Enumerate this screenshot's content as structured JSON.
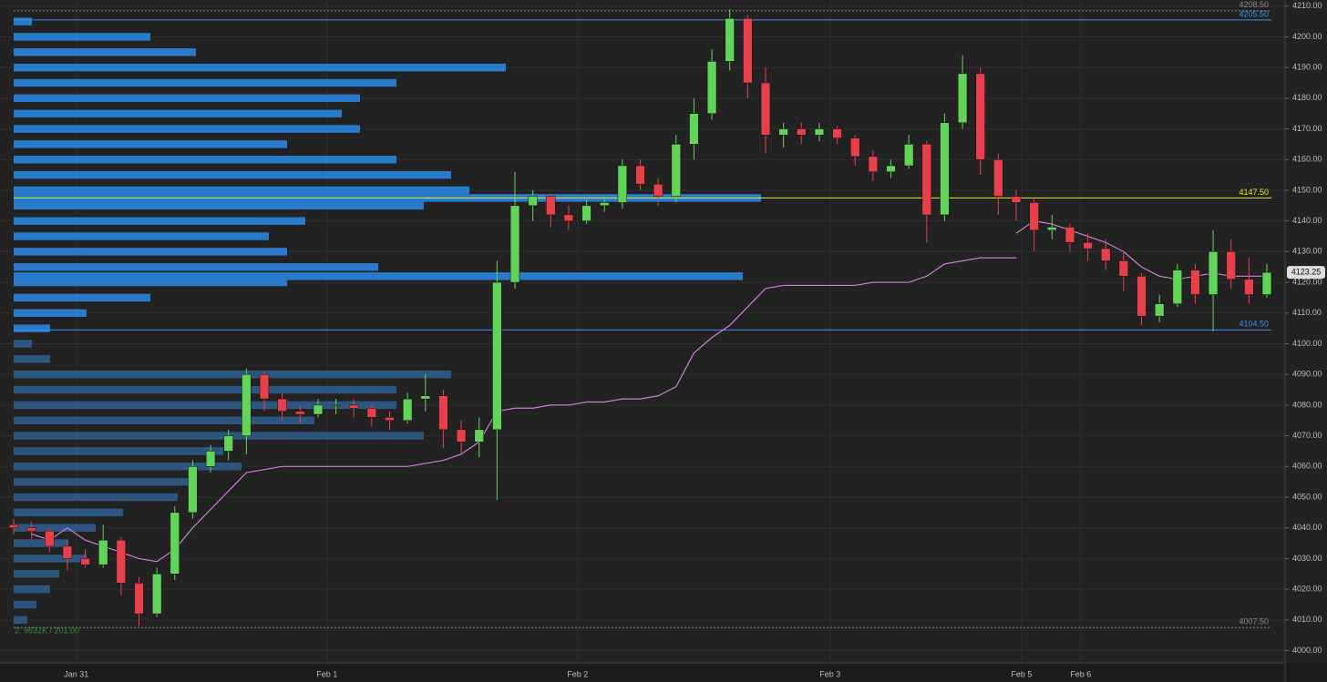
{
  "chart_data": {
    "type": "candlestick",
    "xlim": [
      0,
      70
    ],
    "xticks": [
      {
        "value": 3.5,
        "label": "Jan 31"
      },
      {
        "value": 17.5,
        "label": "Feb 1"
      },
      {
        "value": 31.5,
        "label": "Feb 2"
      },
      {
        "value": 45.6,
        "label": "Feb 3"
      },
      {
        "value": 56.3,
        "label": "Feb 5"
      },
      {
        "value": 59.6,
        "label": "Feb 6"
      }
    ],
    "ylim": [
      3996,
      4212
    ],
    "yticks": [
      {
        "value": 4000,
        "label": "4000.00"
      },
      {
        "value": 4010,
        "label": "4010.00"
      },
      {
        "value": 4020,
        "label": "4020.00"
      },
      {
        "value": 4030,
        "label": "4030.00"
      },
      {
        "value": 4040,
        "label": "4040.00"
      },
      {
        "value": 4050,
        "label": "4050.00"
      },
      {
        "value": 4060,
        "label": "4060.00"
      },
      {
        "value": 4070,
        "label": "4070.00"
      },
      {
        "value": 4080,
        "label": "4080.00"
      },
      {
        "value": 4090,
        "label": "4090.00"
      },
      {
        "value": 4100,
        "label": "4100.00"
      },
      {
        "value": 4110,
        "label": "4110.00"
      },
      {
        "value": 4120,
        "label": "4120.00"
      },
      {
        "value": 4130,
        "label": "4130.00"
      },
      {
        "value": 4140,
        "label": "4140.00"
      },
      {
        "value": 4150,
        "label": "4150.00"
      },
      {
        "value": 4160,
        "label": "4160.00"
      },
      {
        "value": 4170,
        "label": "4170.00"
      },
      {
        "value": 4180,
        "label": "4180.00"
      },
      {
        "value": 4190,
        "label": "4190.00"
      },
      {
        "value": 4200,
        "label": "4200.00"
      },
      {
        "value": 4210,
        "label": "4210.00"
      }
    ],
    "grid": true,
    "up_color": "#62d45a",
    "down_color": "#e8404a",
    "open": [
      4041,
      4040,
      4039,
      4034,
      4030,
      4028,
      4036,
      4022,
      4012,
      4025,
      4045,
      4060,
      4065,
      4070,
      4090,
      4082,
      4078,
      4077,
      4080,
      4080,
      4079,
      4076,
      4075,
      4082,
      4083,
      4072,
      4068,
      4072,
      4120,
      4145,
      4148,
      4142,
      4140,
      4145,
      4146,
      4158,
      4152,
      4148,
      4165,
      4175,
      4192,
      4206,
      4185,
      4168,
      4170,
      4168,
      4170,
      4167,
      4161,
      4156,
      4158,
      4165,
      4142,
      4172,
      4188,
      4160,
      4148,
      4146,
      4137,
      4138,
      4133,
      4131,
      4127,
      4122,
      4109,
      4113,
      4124,
      4116,
      4130,
      4121,
      4116
    ],
    "high": [
      4043,
      4042,
      4040,
      4036,
      4033,
      4041,
      4037,
      4024,
      4027,
      4047,
      4062,
      4067,
      4072,
      4092,
      4091,
      4084,
      4080,
      4082,
      4082,
      4082,
      4080,
      4078,
      4084,
      4090,
      4085,
      4075,
      4076,
      4127,
      4156,
      4150,
      4149,
      4145,
      4147,
      4148,
      4160,
      4160,
      4154,
      4168,
      4180,
      4196,
      4209,
      4207,
      4190,
      4172,
      4172,
      4172,
      4171,
      4168,
      4163,
      4160,
      4168,
      4166,
      4175,
      4194,
      4190,
      4162,
      4150,
      4147,
      4142,
      4139,
      4136,
      4134,
      4130,
      4123,
      4116,
      4126,
      4126,
      4137,
      4134,
      4128,
      4126
    ],
    "low": [
      4038,
      4036,
      4032,
      4026,
      4027,
      4027,
      4018,
      4008,
      4011,
      4023,
      4043,
      4058,
      4062,
      4064,
      4078,
      4075,
      4074,
      4076,
      4077,
      4076,
      4073,
      4072,
      4074,
      4078,
      4066,
      4064,
      4063,
      4049,
      4118,
      4140,
      4138,
      4137,
      4139,
      4143,
      4144,
      4150,
      4145,
      4146,
      4160,
      4173,
      4189,
      4180,
      4162,
      4164,
      4165,
      4166,
      4165,
      4158,
      4153,
      4154,
      4157,
      4133,
      4140,
      4170,
      4155,
      4142,
      4140,
      4130,
      4134,
      4130,
      4127,
      4124,
      4117,
      4106,
      4107,
      4112,
      4113,
      4104,
      4118,
      4113,
      4115
    ],
    "close": [
      4040,
      4039,
      4034,
      4030,
      4028,
      4036,
      4022,
      4012,
      4025,
      4045,
      4060,
      4065,
      4070,
      4090,
      4082,
      4078,
      4077,
      4080,
      4080,
      4079,
      4076,
      4075,
      4082,
      4083,
      4072,
      4068,
      4072,
      4120,
      4145,
      4148,
      4142,
      4140,
      4145,
      4146,
      4158,
      4152,
      4148,
      4165,
      4175,
      4192,
      4206,
      4185,
      4168,
      4170,
      4168,
      4170,
      4167,
      4161,
      4156,
      4158,
      4165,
      4142,
      4172,
      4188,
      4160,
      4148,
      4146,
      4137,
      4138,
      4133,
      4131,
      4127,
      4122,
      4109,
      4113,
      4124,
      4116,
      4130,
      4121,
      4116,
      4123.25
    ],
    "lines": [
      {
        "color": "#c77fd0",
        "values": [
          null,
          4038,
          4036,
          4040,
          4036,
          4034,
          4032,
          4030,
          4029,
          4033,
          4040,
          4046,
          4052,
          4058,
          4059,
          4060,
          4060,
          4060,
          4060,
          4060,
          4060,
          4060,
          4060,
          4061,
          4062,
          4064,
          4068,
          4078,
          4079,
          4079,
          4080,
          4080,
          4081,
          4081,
          4082,
          4082,
          4083,
          4086,
          4097,
          4102,
          4106,
          4112,
          4118,
          4119,
          4119,
          4119,
          4119,
          4119,
          4120,
          4120,
          4120,
          4122,
          4126,
          4127,
          4128,
          4128,
          4128,
          null,
          null,
          null,
          null,
          null,
          null,
          null,
          null,
          null,
          null,
          null,
          null,
          null,
          null
        ]
      },
      {
        "color": "#c77fd0",
        "values": [
          null,
          null,
          null,
          null,
          null,
          null,
          null,
          null,
          null,
          null,
          null,
          null,
          null,
          null,
          null,
          null,
          null,
          null,
          null,
          null,
          null,
          null,
          null,
          null,
          null,
          null,
          null,
          null,
          null,
          null,
          null,
          null,
          null,
          null,
          null,
          null,
          null,
          null,
          null,
          null,
          null,
          null,
          null,
          null,
          null,
          null,
          null,
          null,
          null,
          null,
          null,
          null,
          null,
          null,
          null,
          null,
          4136,
          4140,
          4139,
          4137,
          4135,
          4133,
          4130,
          4125,
          4122,
          4121,
          4122,
          4123,
          4122,
          4122,
          4122
        ]
      }
    ],
    "volume_profile": {
      "color": "#2a7fd4",
      "outer_color": "#2e5a84",
      "prices": [
        4205,
        4200,
        4195,
        4190,
        4185,
        4180,
        4175,
        4170,
        4165,
        4160,
        4155,
        4150,
        4147.5,
        4145,
        4140,
        4135,
        4130,
        4125,
        4122,
        4120,
        4115,
        4110,
        4105,
        4100,
        4095,
        4090,
        4085,
        4080,
        4075,
        4070,
        4065,
        4060,
        4055,
        4050,
        4045,
        4040,
        4035,
        4030,
        4025,
        4020,
        4015,
        4010
      ],
      "volumes": [
        20,
        150,
        200,
        540,
        420,
        380,
        360,
        380,
        300,
        420,
        480,
        500,
        820,
        450,
        320,
        280,
        300,
        400,
        800,
        300,
        150,
        80,
        40,
        20,
        40,
        480,
        420,
        420,
        330,
        450,
        230,
        250,
        200,
        180,
        120,
        90,
        60,
        80,
        50,
        40,
        25,
        15
      ]
    },
    "levels": [
      {
        "value": 4208.5,
        "label": "4208.50",
        "color": "#8a8a8a"
      },
      {
        "value": 4205.5,
        "label": "4205.50",
        "color": "#3d8fe0"
      },
      {
        "value": 4147.5,
        "label": "4147.50",
        "color": "#e8e83a"
      },
      {
        "value": 4104.5,
        "label": "4104.50",
        "color": "#3d8fe0"
      },
      {
        "value": 4007.5,
        "label": "4007.50",
        "color": "#8a8a8a"
      }
    ],
    "last_price": {
      "value": 4123.25,
      "label": "4123.25"
    },
    "annotation": "2: 9632K / 201.00"
  }
}
